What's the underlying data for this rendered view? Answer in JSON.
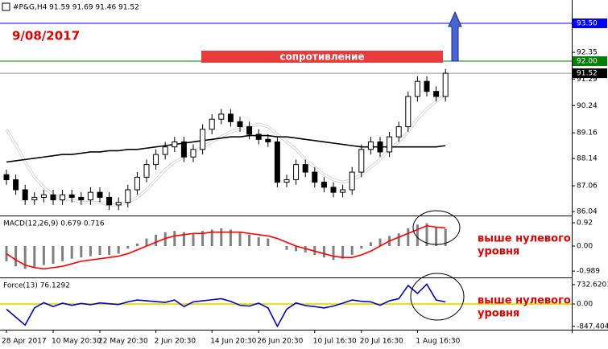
{
  "header": "#P&G,H4  91.59 91.69 91.46 91.52",
  "chart_data": [
    {
      "type": "candlestick",
      "annotations": [
        "9/08/2017",
        "сопротивление"
      ],
      "categories": [
        "28 Apr 2017",
        null,
        null,
        null,
        null,
        "10 May 20:30",
        null,
        null,
        null,
        null,
        "22 May 20:30",
        null,
        null,
        null,
        null,
        null,
        "2 Jun 20:30",
        null,
        null,
        null,
        null,
        null,
        "14 Jun 20:30",
        null,
        null,
        null,
        null,
        "26 Jun 20:30",
        null,
        null,
        null,
        null,
        null,
        "10 Jul 16:30",
        null,
        null,
        null,
        null,
        "20 Jul 16:30",
        null,
        null,
        null,
        null,
        null,
        "1 Aug 16:30",
        null,
        null,
        null
      ],
      "open": [
        87.5,
        87.3,
        86.9,
        86.5,
        86.6,
        86.7,
        86.5,
        86.7,
        86.6,
        86.5,
        86.8,
        86.6,
        86.3,
        86.4,
        86.9,
        87.4,
        87.9,
        88.3,
        88.6,
        88.8,
        88.2,
        88.5,
        89.3,
        89.7,
        89.9,
        89.6,
        89.4,
        89.1,
        88.9,
        88.8,
        87.2,
        87.3,
        87.9,
        87.6,
        87.2,
        87.0,
        86.8,
        86.9,
        87.6,
        88.5,
        88.8,
        88.4,
        89.0,
        89.4,
        90.6,
        91.2,
        90.8,
        90.6
      ],
      "high": [
        87.7,
        87.5,
        87.1,
        86.8,
        86.9,
        86.9,
        86.9,
        86.9,
        86.8,
        87.0,
        87.0,
        86.8,
        86.6,
        87.1,
        87.6,
        88.1,
        88.5,
        88.8,
        89.0,
        89.0,
        88.7,
        89.5,
        89.9,
        90.1,
        90.1,
        89.8,
        89.6,
        89.3,
        89.1,
        89.0,
        87.5,
        88.1,
        88.1,
        87.8,
        87.4,
        87.2,
        87.1,
        87.8,
        88.7,
        89.0,
        89.0,
        89.2,
        89.6,
        90.8,
        91.4,
        91.4,
        91.0,
        91.69
      ],
      "low": [
        87.1,
        86.7,
        86.3,
        86.3,
        86.4,
        86.3,
        86.3,
        86.4,
        86.3,
        86.3,
        86.4,
        86.1,
        86.1,
        86.2,
        86.7,
        87.2,
        87.7,
        88.1,
        88.4,
        88.0,
        88.0,
        88.3,
        89.1,
        89.5,
        89.4,
        89.2,
        88.9,
        88.7,
        88.6,
        87.0,
        87.0,
        87.1,
        87.4,
        87.0,
        86.8,
        86.6,
        86.6,
        86.7,
        87.4,
        88.3,
        88.2,
        88.2,
        88.8,
        89.2,
        90.4,
        90.6,
        90.4,
        90.4
      ],
      "close": [
        87.3,
        86.9,
        86.5,
        86.6,
        86.7,
        86.5,
        86.7,
        86.6,
        86.5,
        86.8,
        86.6,
        86.3,
        86.4,
        86.9,
        87.4,
        87.9,
        88.3,
        88.6,
        88.8,
        88.2,
        88.5,
        89.3,
        89.7,
        89.9,
        89.6,
        89.4,
        89.1,
        88.9,
        88.8,
        87.2,
        87.3,
        87.9,
        87.6,
        87.2,
        87.0,
        86.8,
        86.9,
        87.6,
        88.5,
        88.8,
        88.4,
        89.0,
        89.4,
        90.6,
        91.2,
        90.8,
        90.6,
        91.52
      ],
      "series": [
        {
          "style": "line",
          "color": "#ffffff",
          "values": [
            89.3,
            88.7,
            88.0,
            87.4,
            87.0,
            86.7,
            86.5,
            86.5,
            86.4,
            86.4,
            86.4,
            86.3,
            86.3,
            86.4,
            86.6,
            86.9,
            87.3,
            87.7,
            88.0,
            88.2,
            88.4,
            88.6,
            88.8,
            89.0,
            89.2,
            89.3,
            89.4,
            89.5,
            89.4,
            89.1,
            88.8,
            88.5,
            88.1,
            87.8,
            87.5,
            87.3,
            87.2,
            87.3,
            87.5,
            87.8,
            88.1,
            88.5,
            88.8,
            89.2,
            89.7,
            90.1,
            90.4,
            90.7
          ]
        },
        {
          "style": "line",
          "color": "#000000",
          "values": [
            88.0,
            88.05,
            88.1,
            88.15,
            88.2,
            88.25,
            88.3,
            88.3,
            88.35,
            88.4,
            88.4,
            88.45,
            88.45,
            88.5,
            88.5,
            88.55,
            88.6,
            88.65,
            88.7,
            88.75,
            88.8,
            88.85,
            88.9,
            88.95,
            89.0,
            89.0,
            89.05,
            89.05,
            89.05,
            89.0,
            89.0,
            88.95,
            88.9,
            88.85,
            88.8,
            88.75,
            88.7,
            88.65,
            88.6,
            88.6,
            88.6,
            88.6,
            88.6,
            88.6,
            88.6,
            88.6,
            88.6,
            88.65
          ]
        }
      ],
      "ylim": [
        85.88,
        94.17
      ],
      "yticks": [
        86.04,
        87.06,
        88.14,
        89.16,
        90.24,
        91.29,
        92.35
      ],
      "levels": [
        {
          "value": 93.5,
          "label": "93.50",
          "color": "#0000ff"
        },
        {
          "value": 92,
          "label": "92.00",
          "color": "#008000"
        },
        {
          "value": 91.52,
          "label": "91.52",
          "color": "#000000"
        }
      ]
    },
    {
      "type": "bar",
      "title": "MACD(12,26,9) 0.679 0.716",
      "annotation": [
        "выше нулевого",
        "уровня"
      ],
      "series": [
        {
          "style": "bar",
          "color": "#808080",
          "values": [
            -0.6,
            -0.8,
            -0.9,
            -0.85,
            -0.75,
            -0.7,
            -0.6,
            -0.5,
            -0.45,
            -0.4,
            -0.35,
            -0.35,
            -0.3,
            -0.1,
            0.1,
            0.3,
            0.45,
            0.55,
            0.6,
            0.55,
            0.5,
            0.6,
            0.65,
            0.7,
            0.65,
            0.55,
            0.45,
            0.35,
            0.3,
            0.0,
            -0.15,
            -0.2,
            -0.25,
            -0.35,
            -0.45,
            -0.55,
            -0.5,
            -0.35,
            -0.1,
            0.15,
            0.3,
            0.4,
            0.5,
            0.7,
            0.85,
            0.9,
            0.75,
            0.679
          ]
        },
        {
          "style": "line",
          "color": "#ff0000",
          "values": [
            -0.3,
            -0.55,
            -0.75,
            -0.85,
            -0.9,
            -0.85,
            -0.8,
            -0.7,
            -0.6,
            -0.55,
            -0.5,
            -0.45,
            -0.4,
            -0.3,
            -0.15,
            0.0,
            0.15,
            0.3,
            0.4,
            0.45,
            0.5,
            0.5,
            0.55,
            0.55,
            0.55,
            0.55,
            0.5,
            0.45,
            0.4,
            0.3,
            0.15,
            0.0,
            -0.1,
            -0.2,
            -0.3,
            -0.4,
            -0.45,
            -0.45,
            -0.35,
            -0.2,
            0.0,
            0.2,
            0.35,
            0.5,
            0.65,
            0.8,
            0.75,
            0.716
          ]
        }
      ],
      "ylim": [
        -1.175,
        1.143
      ],
      "yticks": [
        -0.989,
        {
          "value": 0,
          "label": "0.00"
        },
        0.92
      ]
    },
    {
      "type": "line",
      "title": "Force(13) 76.1292",
      "annotation": [
        "выше нулевого",
        "уровня"
      ],
      "zero_line": "#e6e600",
      "series": [
        {
          "style": "line",
          "color": "#0000cc",
          "values": [
            -200,
            -500,
            -800,
            -150,
            50,
            -100,
            30,
            -50,
            20,
            -30,
            40,
            10,
            -20,
            80,
            150,
            120,
            90,
            60,
            150,
            -100,
            80,
            120,
            160,
            200,
            100,
            -50,
            -80,
            30,
            -150,
            -850,
            -200,
            40,
            -60,
            -100,
            -150,
            -80,
            30,
            150,
            100,
            80,
            -50,
            120,
            200,
            700,
            400,
            750,
            150,
            76.1292
          ]
        }
      ],
      "ylim": [
        -977,
        946
      ],
      "yticks": [
        -847.404,
        {
          "value": 0,
          "label": "0.00"
        },
        732.6201
      ]
    }
  ]
}
